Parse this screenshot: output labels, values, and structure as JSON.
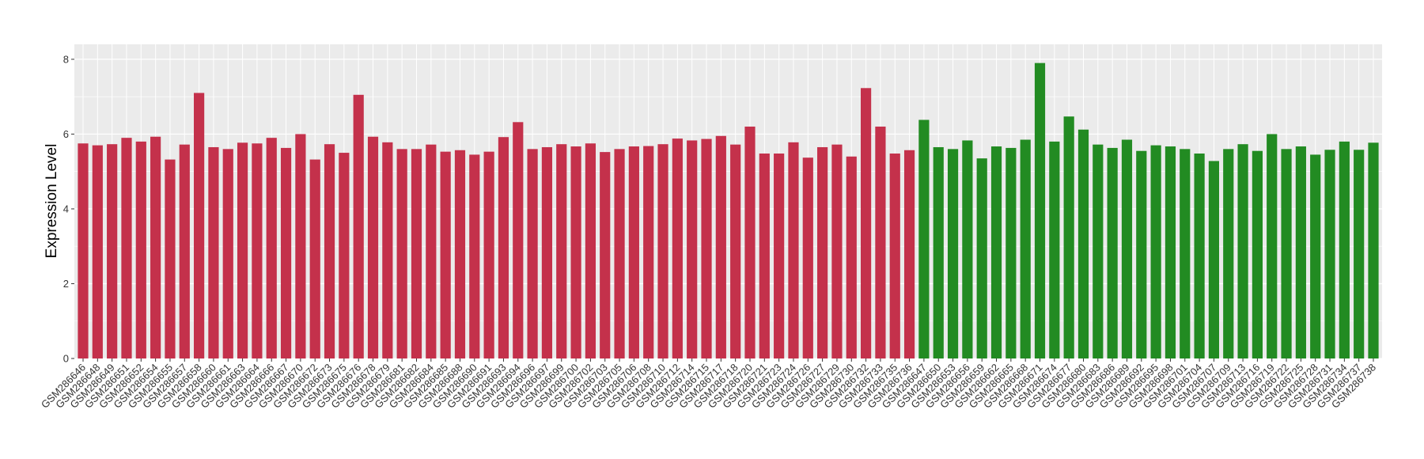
{
  "chart_data": {
    "type": "bar",
    "title": "",
    "xlabel": "",
    "ylabel": "Expression Level",
    "ylim": [
      0,
      8.4
    ],
    "yticks": [
      0,
      2,
      4,
      6,
      8
    ],
    "grid": true,
    "legend": "none",
    "colors": {
      "group1": "#C4314B",
      "group2": "#228B22",
      "panel": "#EBEBEB",
      "grid": "#FFFFFF"
    },
    "categories": [
      "GSM286646",
      "GSM286648",
      "GSM286649",
      "GSM286651",
      "GSM286652",
      "GSM286654",
      "GSM286655",
      "GSM286657",
      "GSM286658",
      "GSM286660",
      "GSM286661",
      "GSM286663",
      "GSM286664",
      "GSM286666",
      "GSM286667",
      "GSM286670",
      "GSM286672",
      "GSM286673",
      "GSM286675",
      "GSM286676",
      "GSM286678",
      "GSM286679",
      "GSM286681",
      "GSM286682",
      "GSM286684",
      "GSM286685",
      "GSM286688",
      "GSM286690",
      "GSM286691",
      "GSM286693",
      "GSM286694",
      "GSM286696",
      "GSM286697",
      "GSM286699",
      "GSM286700",
      "GSM286702",
      "GSM286703",
      "GSM286705",
      "GSM286706",
      "GSM286708",
      "GSM286710",
      "GSM286712",
      "GSM286714",
      "GSM286715",
      "GSM286717",
      "GSM286718",
      "GSM286720",
      "GSM286721",
      "GSM286723",
      "GSM286724",
      "GSM286726",
      "GSM286727",
      "GSM286729",
      "GSM286730",
      "GSM286732",
      "GSM286733",
      "GSM286735",
      "GSM286736",
      "GSM286647",
      "GSM286650",
      "GSM286653",
      "GSM286656",
      "GSM286659",
      "GSM286662",
      "GSM286665",
      "GSM286668",
      "GSM286671",
      "GSM286674",
      "GSM286677",
      "GSM286680",
      "GSM286683",
      "GSM286686",
      "GSM286689",
      "GSM286692",
      "GSM286695",
      "GSM286698",
      "GSM286701",
      "GSM286704",
      "GSM286707",
      "GSM286709",
      "GSM286713",
      "GSM286716",
      "GSM286719",
      "GSM286722",
      "GSM286725",
      "GSM286728",
      "GSM286731",
      "GSM286734",
      "GSM286737",
      "GSM286738"
    ],
    "values": [
      5.75,
      5.7,
      5.73,
      5.9,
      5.8,
      5.93,
      5.32,
      5.72,
      7.1,
      5.65,
      5.6,
      5.77,
      5.75,
      5.9,
      5.63,
      6.0,
      5.32,
      5.73,
      5.5,
      7.05,
      5.93,
      5.78,
      5.6,
      5.6,
      5.72,
      5.53,
      5.57,
      5.45,
      5.53,
      5.92,
      6.32,
      5.6,
      5.65,
      5.73,
      5.67,
      5.75,
      5.52,
      5.6,
      5.67,
      5.68,
      5.73,
      5.88,
      5.83,
      5.87,
      5.95,
      5.72,
      6.2,
      5.48,
      5.48,
      5.78,
      5.37,
      5.65,
      5.72,
      5.4,
      7.23,
      6.2,
      5.48,
      5.57,
      6.38,
      5.65,
      5.6,
      5.83,
      5.35,
      5.67,
      5.63,
      5.85,
      7.9,
      5.8,
      6.47,
      6.12,
      5.72,
      5.63,
      5.85,
      5.55,
      5.7,
      5.67,
      5.6,
      5.48,
      5.28,
      5.6,
      5.73,
      5.55,
      6.0,
      5.6,
      5.67,
      5.45,
      5.58,
      5.8,
      5.58,
      5.77
    ],
    "groups": [
      1,
      1,
      1,
      1,
      1,
      1,
      1,
      1,
      1,
      1,
      1,
      1,
      1,
      1,
      1,
      1,
      1,
      1,
      1,
      1,
      1,
      1,
      1,
      1,
      1,
      1,
      1,
      1,
      1,
      1,
      1,
      1,
      1,
      1,
      1,
      1,
      1,
      1,
      1,
      1,
      1,
      1,
      1,
      1,
      1,
      1,
      1,
      1,
      1,
      1,
      1,
      1,
      1,
      1,
      1,
      1,
      1,
      1,
      2,
      2,
      2,
      2,
      2,
      2,
      2,
      2,
      2,
      2,
      2,
      2,
      2,
      2,
      2,
      2,
      2,
      2,
      2,
      2,
      2,
      2,
      2,
      2,
      2,
      2,
      2,
      2,
      2,
      2,
      2,
      2
    ]
  }
}
